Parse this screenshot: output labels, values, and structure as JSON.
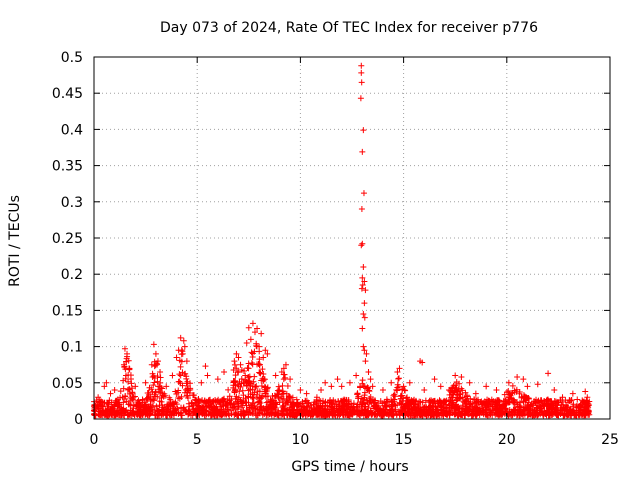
{
  "chart_data": {
    "type": "scatter",
    "title": "Day 073 of 2024, Rate Of TEC Index for receiver p776",
    "xlabel": "GPS time / hours",
    "ylabel": "ROTI / TECUs",
    "xlim": [
      0,
      25
    ],
    "ylim": [
      0,
      0.5
    ],
    "xticks": [
      0,
      5,
      10,
      15,
      20,
      25
    ],
    "yticks": [
      0,
      0.05,
      0.1,
      0.15,
      0.2,
      0.25,
      0.3,
      0.35,
      0.4,
      0.45,
      0.5
    ],
    "grid": true,
    "marker": "+",
    "marker_color": "#ff0000",
    "x_coverage": [
      0,
      24
    ],
    "series": [
      {
        "points": [
          [
            12.95,
            0.488
          ],
          [
            12.95,
            0.478
          ],
          [
            12.97,
            0.465
          ],
          [
            12.93,
            0.443
          ],
          [
            13.05,
            0.399
          ],
          [
            13.0,
            0.369
          ],
          [
            13.08,
            0.312
          ],
          [
            12.98,
            0.29
          ],
          [
            13.0,
            0.242
          ],
          [
            12.95,
            0.24
          ],
          [
            13.05,
            0.21
          ],
          [
            13.0,
            0.195
          ],
          [
            13.1,
            0.19
          ],
          [
            13.02,
            0.185
          ],
          [
            12.98,
            0.18
          ],
          [
            13.15,
            0.178
          ],
          [
            13.1,
            0.16
          ],
          [
            13.05,
            0.145
          ],
          [
            13.12,
            0.14
          ],
          [
            13.0,
            0.125
          ],
          [
            13.05,
            0.1
          ],
          [
            13.1,
            0.095
          ],
          [
            13.2,
            0.09
          ],
          [
            13.15,
            0.08
          ],
          [
            13.3,
            0.065
          ],
          [
            13.4,
            0.055
          ],
          [
            13.5,
            0.045
          ],
          [
            1.5,
            0.097
          ],
          [
            1.6,
            0.09
          ],
          [
            1.45,
            0.075
          ],
          [
            1.7,
            0.07
          ],
          [
            1.55,
            0.06
          ],
          [
            2.9,
            0.103
          ],
          [
            3.0,
            0.09
          ],
          [
            3.1,
            0.08
          ],
          [
            2.8,
            0.075
          ],
          [
            3.2,
            0.065
          ],
          [
            4.2,
            0.112
          ],
          [
            4.35,
            0.108
          ],
          [
            4.4,
            0.1
          ],
          [
            4.1,
            0.095
          ],
          [
            4.3,
            0.09
          ],
          [
            4.0,
            0.085
          ],
          [
            4.5,
            0.08
          ],
          [
            5.4,
            0.073
          ],
          [
            5.5,
            0.06
          ],
          [
            5.2,
            0.05
          ],
          [
            6.9,
            0.09
          ],
          [
            7.0,
            0.085
          ],
          [
            6.8,
            0.08
          ],
          [
            7.1,
            0.075
          ],
          [
            7.5,
            0.126
          ],
          [
            7.7,
            0.132
          ],
          [
            7.8,
            0.12
          ],
          [
            7.6,
            0.11
          ],
          [
            7.9,
            0.125
          ],
          [
            8.1,
            0.118
          ],
          [
            8.0,
            0.1
          ],
          [
            8.3,
            0.095
          ],
          [
            8.4,
            0.09
          ],
          [
            7.4,
            0.105
          ],
          [
            8.2,
            0.085
          ],
          [
            9.3,
            0.075
          ],
          [
            9.2,
            0.07
          ],
          [
            9.1,
            0.065
          ],
          [
            11.2,
            0.05
          ],
          [
            11.5,
            0.045
          ],
          [
            11.8,
            0.055
          ],
          [
            14.7,
            0.065
          ],
          [
            14.8,
            0.07
          ],
          [
            15.3,
            0.05
          ],
          [
            15.8,
            0.08
          ],
          [
            15.9,
            0.078
          ],
          [
            16.5,
            0.055
          ],
          [
            17.5,
            0.06
          ],
          [
            17.8,
            0.058
          ],
          [
            18.2,
            0.05
          ],
          [
            19.0,
            0.045
          ],
          [
            20.1,
            0.05
          ],
          [
            20.5,
            0.058
          ],
          [
            20.8,
            0.055
          ],
          [
            21.5,
            0.048
          ],
          [
            22.0,
            0.063
          ],
          [
            22.3,
            0.04
          ],
          [
            23.2,
            0.035
          ],
          [
            23.8,
            0.038
          ],
          [
            23.9,
            0.03
          ],
          [
            0.5,
            0.045
          ],
          [
            0.6,
            0.05
          ],
          [
            0.2,
            0.03
          ],
          [
            0.8,
            0.035
          ],
          [
            1.0,
            0.04
          ],
          [
            2.0,
            0.045
          ],
          [
            2.5,
            0.05
          ],
          [
            3.5,
            0.045
          ],
          [
            3.8,
            0.06
          ],
          [
            6.0,
            0.055
          ],
          [
            6.3,
            0.065
          ],
          [
            8.8,
            0.06
          ],
          [
            9.5,
            0.055
          ],
          [
            10.0,
            0.04
          ],
          [
            10.3,
            0.035
          ],
          [
            10.8,
            0.03
          ],
          [
            11.0,
            0.04
          ],
          [
            12.0,
            0.045
          ],
          [
            12.4,
            0.05
          ],
          [
            12.7,
            0.06
          ],
          [
            14.0,
            0.04
          ],
          [
            14.4,
            0.05
          ],
          [
            15.0,
            0.045
          ],
          [
            16.0,
            0.04
          ],
          [
            16.8,
            0.045
          ],
          [
            17.2,
            0.04
          ],
          [
            18.5,
            0.035
          ],
          [
            19.5,
            0.04
          ],
          [
            21.0,
            0.045
          ],
          [
            22.7,
            0.03
          ]
        ]
      }
    ]
  }
}
